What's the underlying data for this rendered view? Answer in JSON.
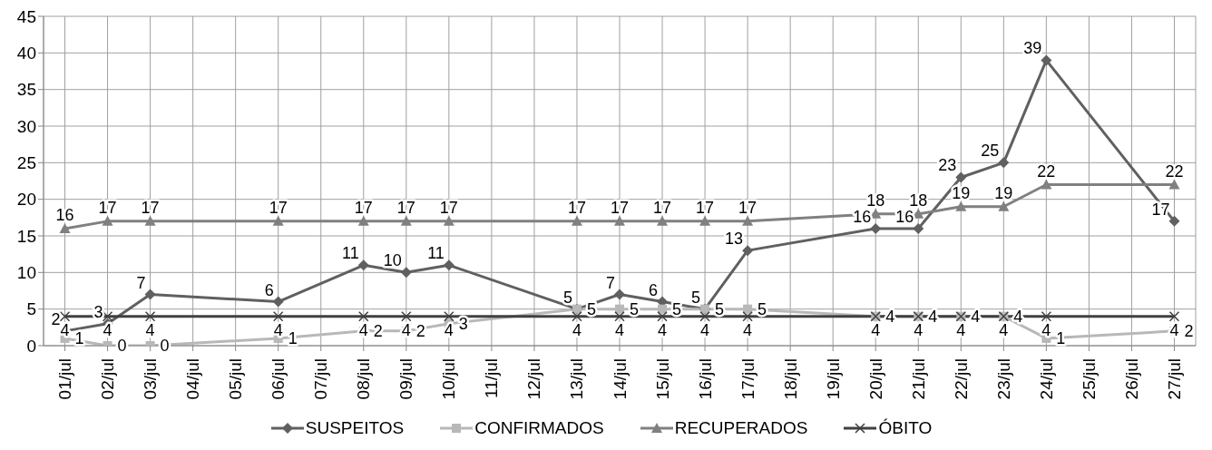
{
  "chart_data": {
    "type": "line",
    "categories": [
      "01/jul",
      "02/jul",
      "03/jul",
      "04/jul",
      "05/jul",
      "06/jul",
      "07/jul",
      "08/jul",
      "09/jul",
      "10/jul",
      "11/jul",
      "12/jul",
      "13/jul",
      "14/jul",
      "15/jul",
      "16/jul",
      "17/jul",
      "18/jul",
      "19/jul",
      "20/jul",
      "21/jul",
      "22/jul",
      "23/jul",
      "24/jul",
      "25/jul",
      "26/jul",
      "27/jul"
    ],
    "series": [
      {
        "name": "SUSPEITOS",
        "color": "#606060",
        "marker": "diamond",
        "values": [
          2,
          3,
          7,
          null,
          null,
          6,
          null,
          11,
          10,
          11,
          null,
          null,
          5,
          7,
          6,
          5,
          13,
          null,
          null,
          16,
          16,
          23,
          25,
          39,
          null,
          null,
          17
        ]
      },
      {
        "name": "CONFIRMADOS",
        "color": "#b8b8b8",
        "marker": "square",
        "values": [
          1,
          0,
          0,
          null,
          null,
          1,
          null,
          2,
          2,
          3,
          null,
          null,
          5,
          5,
          5,
          5,
          5,
          null,
          null,
          4,
          4,
          4,
          4,
          1,
          null,
          null,
          2
        ]
      },
      {
        "name": "RECUPERADOS",
        "color": "#808080",
        "marker": "triangle",
        "values": [
          16,
          17,
          17,
          null,
          null,
          17,
          null,
          17,
          17,
          17,
          null,
          null,
          17,
          17,
          17,
          17,
          17,
          null,
          null,
          18,
          18,
          19,
          19,
          22,
          null,
          null,
          22
        ]
      },
      {
        "name": "ÓBITO",
        "color": "#404040",
        "marker": "cross",
        "values": [
          4,
          4,
          4,
          null,
          null,
          4,
          null,
          4,
          4,
          4,
          null,
          null,
          4,
          4,
          4,
          4,
          4,
          null,
          null,
          4,
          4,
          4,
          4,
          4,
          null,
          null,
          4
        ]
      }
    ],
    "ylim": [
      0,
      45
    ],
    "yticks": [
      0,
      5,
      10,
      15,
      20,
      25,
      30,
      35,
      40,
      45
    ],
    "grid": true,
    "legend": "bottom",
    "data_labels": true
  }
}
